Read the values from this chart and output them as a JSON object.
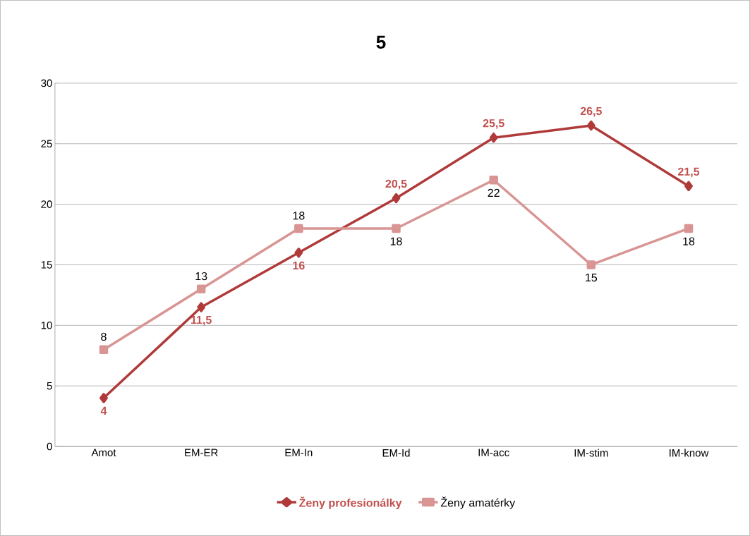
{
  "chart_data": {
    "type": "line",
    "title": "5",
    "categories": [
      "Amot",
      "EM-ER",
      "EM-In",
      "EM-Id",
      "IM-acc",
      "IM-stim",
      "IM-know"
    ],
    "series": [
      {
        "name": "Ženy profesionálky",
        "color": "#b03a3a",
        "marker": "diamond",
        "values": [
          4,
          11.5,
          16,
          20.5,
          25.5,
          26.5,
          21.5
        ],
        "value_labels": [
          "4",
          "11,5",
          "16",
          "20,5",
          "25,5",
          "26,5",
          "21,5"
        ]
      },
      {
        "name": "Ženy amatérky",
        "color": "#d99594",
        "marker": "square",
        "values": [
          8,
          13,
          18,
          18,
          22,
          15,
          18
        ],
        "value_labels": [
          "8",
          "13",
          "18",
          "18",
          "22",
          "15",
          "18"
        ]
      }
    ],
    "ylim": [
      0,
      30
    ],
    "yticks": [
      0,
      5,
      10,
      15,
      20,
      25,
      30
    ],
    "grid": "y",
    "legend": "bottom",
    "line_style": "solid"
  }
}
